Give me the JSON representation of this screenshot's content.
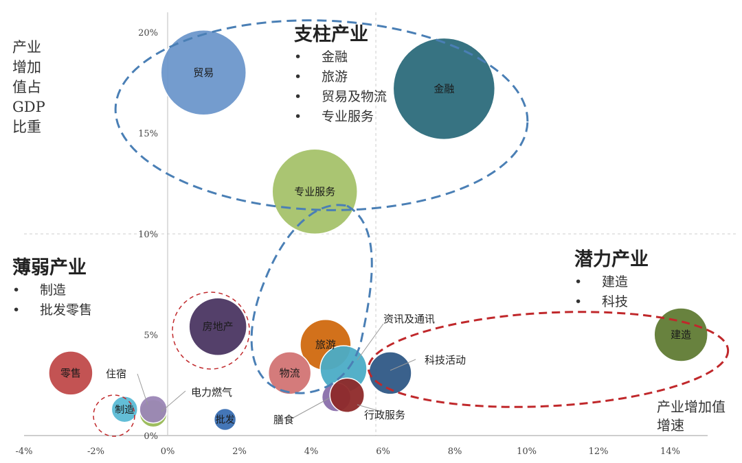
{
  "chart_data": {
    "type": "scatter",
    "subtype": "bubble",
    "ylabel": "产业增加值占GDP比重",
    "xlabel": "产业增加值增速",
    "xlim": [
      -4,
      15
    ],
    "ylim": [
      0,
      21
    ],
    "x_ticks": [
      "-4%",
      "-2%",
      "0%",
      "2%",
      "4%",
      "6%",
      "8%",
      "10%",
      "12%",
      "14%"
    ],
    "y_ticks": [
      "0%",
      "5%",
      "10%",
      "15%",
      "20%"
    ],
    "reference_lines": {
      "x": 5.8,
      "y": 10
    },
    "points": [
      {
        "name": "贸易",
        "x": 1.0,
        "y": 18.0,
        "r": 62,
        "color": "#6d97cb",
        "label_inside": true
      },
      {
        "name": "金融",
        "x": 7.7,
        "y": 17.2,
        "r": 74,
        "color": "#2c6b7b",
        "label_inside": true
      },
      {
        "name": "专业服务",
        "x": 4.1,
        "y": 12.1,
        "r": 62,
        "color": "#a5c26a",
        "label_inside": true
      },
      {
        "name": "房地产",
        "x": 1.4,
        "y": 5.4,
        "r": 42,
        "color": "#4b3662",
        "label_inside": true
      },
      {
        "name": "旅游",
        "x": 4.4,
        "y": 4.5,
        "r": 37,
        "color": "#d0690f",
        "label_inside": true
      },
      {
        "name": "资讯及通讯",
        "x": 4.9,
        "y": 3.3,
        "r": 34,
        "color": "#4bacc6",
        "label_inside": false
      },
      {
        "name": "物流",
        "x": 3.4,
        "y": 3.1,
        "r": 31,
        "color": "#d27474",
        "label_inside": true
      },
      {
        "name": "科技活动",
        "x": 6.2,
        "y": 3.1,
        "r": 31,
        "color": "#2f5886",
        "label_inside": false
      },
      {
        "name": "零售",
        "x": -2.7,
        "y": 3.1,
        "r": 32,
        "color": "#c04a4a",
        "label_inside": true
      },
      {
        "name": "建造",
        "x": 14.3,
        "y": 5.0,
        "r": 39,
        "color": "#607b34",
        "label_inside": true
      },
      {
        "name": "膳食",
        "x": 4.7,
        "y": 1.9,
        "r": 21,
        "color": "#8a6fab",
        "label_inside": false
      },
      {
        "name": "行政服务",
        "x": 5.0,
        "y": 2.0,
        "r": 25,
        "color": "#8e2929",
        "label_inside": false
      },
      {
        "name": "住宿",
        "x": -0.4,
        "y": 1.1,
        "r": 20,
        "color": "#98b955",
        "label_inside": false
      },
      {
        "name": "电力燃气",
        "x": -0.4,
        "y": 1.3,
        "r": 20,
        "color": "#9b86b6",
        "label_inside": false
      },
      {
        "name": "制造",
        "x": -1.2,
        "y": 1.3,
        "r": 19,
        "color": "#5bbad5",
        "label_inside": true
      },
      {
        "name": "批发",
        "x": 1.6,
        "y": 0.8,
        "r": 16,
        "color": "#3a6fb3",
        "label_inside": true
      }
    ],
    "groups": [
      {
        "title": "支柱产业",
        "items": [
          "金融",
          "旅游",
          "贸易及物流",
          "专业服务"
        ]
      },
      {
        "title": "薄弱产业",
        "items": [
          "制造",
          "批发零售"
        ]
      },
      {
        "title": "潜力产业",
        "items": [
          "建造",
          "科技"
        ]
      }
    ],
    "grid": false,
    "legend": "none"
  }
}
